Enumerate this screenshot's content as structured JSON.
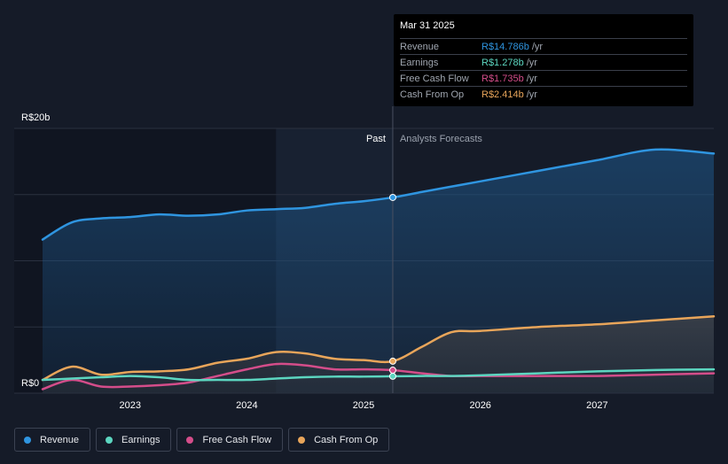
{
  "chart_data": {
    "type": "line",
    "currency_prefix": "R$",
    "y_axis_labels": [
      "R$20b",
      "R$0"
    ],
    "ylim": [
      0,
      20
    ],
    "xlim": [
      2022.2,
      2028.0
    ],
    "x_tick_labels": [
      "2023",
      "2024",
      "2025",
      "2026",
      "2027"
    ],
    "x_ticks": [
      2023,
      2024,
      2025,
      2026,
      2027
    ],
    "divider_x": 2025.25,
    "past_label": "Past",
    "forecast_label": "Analysts Forecasts",
    "series": [
      {
        "name": "Revenue",
        "color": "#2f95e0",
        "points": [
          [
            2022.25,
            11.6
          ],
          [
            2022.5,
            12.9
          ],
          [
            2022.75,
            13.2
          ],
          [
            2023.0,
            13.3
          ],
          [
            2023.25,
            13.5
          ],
          [
            2023.5,
            13.4
          ],
          [
            2023.75,
            13.5
          ],
          [
            2024.0,
            13.8
          ],
          [
            2024.25,
            13.9
          ],
          [
            2024.5,
            14.0
          ],
          [
            2024.75,
            14.3
          ],
          [
            2025.0,
            14.5
          ],
          [
            2025.25,
            14.786
          ],
          [
            2025.5,
            15.2
          ],
          [
            2025.75,
            15.6
          ],
          [
            2026.0,
            16.0
          ],
          [
            2026.5,
            16.8
          ],
          [
            2027.0,
            17.6
          ],
          [
            2027.5,
            18.4
          ],
          [
            2028.0,
            18.1
          ]
        ]
      },
      {
        "name": "Earnings",
        "color": "#5cd6c0",
        "points": [
          [
            2022.25,
            1.0
          ],
          [
            2022.5,
            1.1
          ],
          [
            2022.75,
            1.2
          ],
          [
            2023.0,
            1.3
          ],
          [
            2023.25,
            1.2
          ],
          [
            2023.5,
            1.0
          ],
          [
            2023.75,
            1.0
          ],
          [
            2024.0,
            1.0
          ],
          [
            2024.25,
            1.1
          ],
          [
            2024.5,
            1.2
          ],
          [
            2024.75,
            1.25
          ],
          [
            2025.0,
            1.25
          ],
          [
            2025.25,
            1.278
          ],
          [
            2025.5,
            1.3
          ],
          [
            2025.75,
            1.3
          ],
          [
            2026.0,
            1.35
          ],
          [
            2026.5,
            1.5
          ],
          [
            2027.0,
            1.65
          ],
          [
            2027.5,
            1.75
          ],
          [
            2028.0,
            1.8
          ]
        ]
      },
      {
        "name": "Free Cash Flow",
        "color": "#d44d8a",
        "points": [
          [
            2022.25,
            0.3
          ],
          [
            2022.5,
            1.0
          ],
          [
            2022.75,
            0.5
          ],
          [
            2023.0,
            0.5
          ],
          [
            2023.25,
            0.6
          ],
          [
            2023.5,
            0.8
          ],
          [
            2023.75,
            1.3
          ],
          [
            2024.0,
            1.8
          ],
          [
            2024.25,
            2.2
          ],
          [
            2024.5,
            2.1
          ],
          [
            2024.75,
            1.8
          ],
          [
            2025.0,
            1.8
          ],
          [
            2025.25,
            1.735
          ],
          [
            2025.5,
            1.5
          ],
          [
            2025.75,
            1.3
          ],
          [
            2026.0,
            1.3
          ],
          [
            2026.5,
            1.3
          ],
          [
            2027.0,
            1.3
          ],
          [
            2027.5,
            1.4
          ],
          [
            2028.0,
            1.5
          ]
        ]
      },
      {
        "name": "Cash From Op",
        "color": "#e8a55a",
        "points": [
          [
            2022.25,
            1.0
          ],
          [
            2022.5,
            2.0
          ],
          [
            2022.75,
            1.4
          ],
          [
            2023.0,
            1.6
          ],
          [
            2023.25,
            1.65
          ],
          [
            2023.5,
            1.8
          ],
          [
            2023.75,
            2.3
          ],
          [
            2024.0,
            2.6
          ],
          [
            2024.25,
            3.1
          ],
          [
            2024.5,
            3.0
          ],
          [
            2024.75,
            2.6
          ],
          [
            2025.0,
            2.5
          ],
          [
            2025.25,
            2.414
          ],
          [
            2025.5,
            3.5
          ],
          [
            2025.75,
            4.6
          ],
          [
            2026.0,
            4.7
          ],
          [
            2026.5,
            5.0
          ],
          [
            2027.0,
            5.2
          ],
          [
            2027.5,
            5.5
          ],
          [
            2028.0,
            5.8
          ]
        ]
      }
    ]
  },
  "tooltip": {
    "date": "Mar 31 2025",
    "rows": [
      {
        "label": "Revenue",
        "value": "R$14.786b",
        "unit": "/yr",
        "color": "#2f95e0"
      },
      {
        "label": "Earnings",
        "value": "R$1.278b",
        "unit": "/yr",
        "color": "#5cd6c0"
      },
      {
        "label": "Free Cash Flow",
        "value": "R$1.735b",
        "unit": "/yr",
        "color": "#d44d8a"
      },
      {
        "label": "Cash From Op",
        "value": "R$2.414b",
        "unit": "/yr",
        "color": "#e8a55a"
      }
    ]
  },
  "legend": [
    {
      "label": "Revenue",
      "color": "#2f95e0"
    },
    {
      "label": "Earnings",
      "color": "#5cd6c0"
    },
    {
      "label": "Free Cash Flow",
      "color": "#d44d8a"
    },
    {
      "label": "Cash From Op",
      "color": "#e8a55a"
    }
  ]
}
